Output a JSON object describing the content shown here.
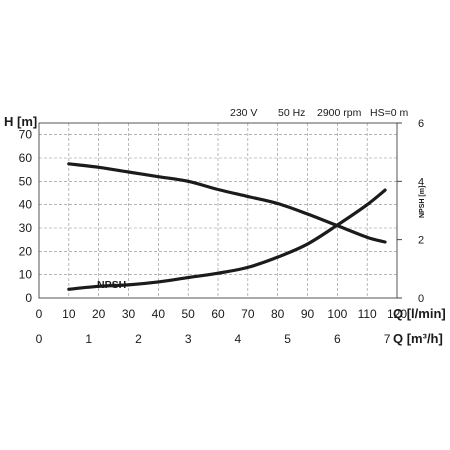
{
  "chart_data": {
    "type": "line",
    "conditions": {
      "voltage": "230 V",
      "frequency": "50 Hz",
      "speed": "2900 rpm",
      "hs": "HS=0 m"
    },
    "y_left": {
      "label": "H [m]",
      "range": [
        0,
        75
      ],
      "ticks": [
        0,
        10,
        20,
        30,
        40,
        50,
        60,
        70
      ]
    },
    "y_right": {
      "label": "NPSH [m]",
      "range": [
        0,
        6
      ],
      "ticks": [
        0,
        2,
        4,
        6
      ]
    },
    "x_primary": {
      "label": "Q [l/min]",
      "range": [
        0,
        120
      ],
      "ticks": [
        0,
        10,
        20,
        30,
        40,
        50,
        60,
        70,
        80,
        90,
        100,
        110,
        120
      ]
    },
    "x_secondary": {
      "label": "Q [m³/h]",
      "range": [
        0,
        7.2
      ],
      "ticks": [
        0,
        1,
        2,
        3,
        4,
        5,
        6,
        7
      ]
    },
    "grid": true,
    "series": [
      {
        "axis": "left",
        "x": [
          10,
          20,
          30,
          40,
          50,
          60,
          70,
          80,
          90,
          100,
          110,
          116
        ],
        "y": [
          57.5,
          56,
          54,
          52,
          50,
          46.5,
          43.5,
          40.5,
          36,
          31,
          26,
          24
        ]
      },
      {
        "name": "NPSH",
        "axis": "right",
        "x": [
          10,
          20,
          30,
          40,
          50,
          60,
          70,
          80,
          90,
          100,
          110,
          116
        ],
        "y": [
          0.3,
          0.4,
          0.45,
          0.55,
          0.7,
          0.85,
          1.05,
          1.4,
          1.85,
          2.5,
          3.2,
          3.7
        ]
      }
    ]
  }
}
